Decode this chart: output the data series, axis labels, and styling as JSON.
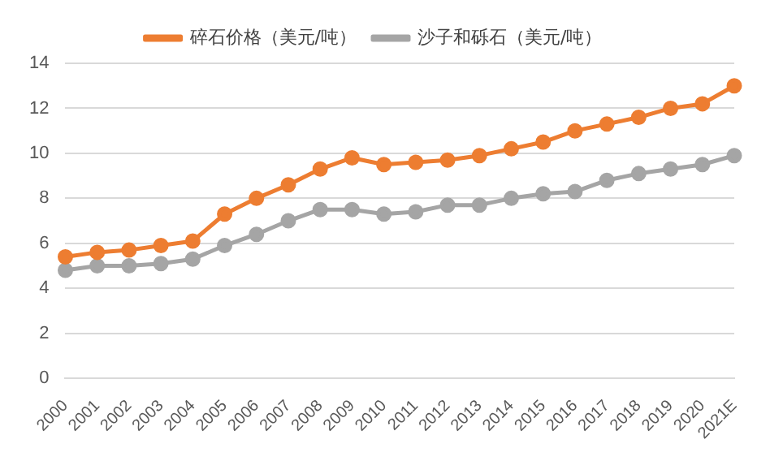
{
  "chart_data": {
    "type": "line",
    "categories": [
      "2000",
      "2001",
      "2002",
      "2003",
      "2004",
      "2005",
      "2006",
      "2007",
      "2008",
      "2009",
      "2010",
      "2011",
      "2012",
      "2013",
      "2014",
      "2015",
      "2016",
      "2017",
      "2018",
      "2019",
      "2020",
      "2021E"
    ],
    "series": [
      {
        "name": "碎石价格（美元/吨）",
        "color": "#ed7d31",
        "values": [
          5.4,
          5.6,
          5.7,
          5.9,
          6.1,
          7.3,
          8.0,
          8.6,
          9.3,
          9.8,
          9.5,
          9.6,
          9.7,
          9.9,
          10.2,
          10.5,
          11.0,
          11.3,
          11.6,
          12.0,
          12.2,
          13.0
        ]
      },
      {
        "name": "沙子和砾石（美元/吨）",
        "color": "#a5a5a5",
        "values": [
          4.8,
          5.0,
          5.0,
          5.1,
          5.3,
          5.9,
          6.4,
          7.0,
          7.5,
          7.5,
          7.3,
          7.4,
          7.7,
          7.7,
          8.0,
          8.2,
          8.3,
          8.8,
          9.1,
          9.3,
          9.5,
          9.9
        ]
      }
    ],
    "ylim": [
      0,
      14
    ],
    "yticks": [
      0,
      2,
      4,
      6,
      8,
      10,
      12,
      14
    ],
    "grid": "y",
    "legend": "top",
    "marker": "circle",
    "line_style": "solid"
  }
}
